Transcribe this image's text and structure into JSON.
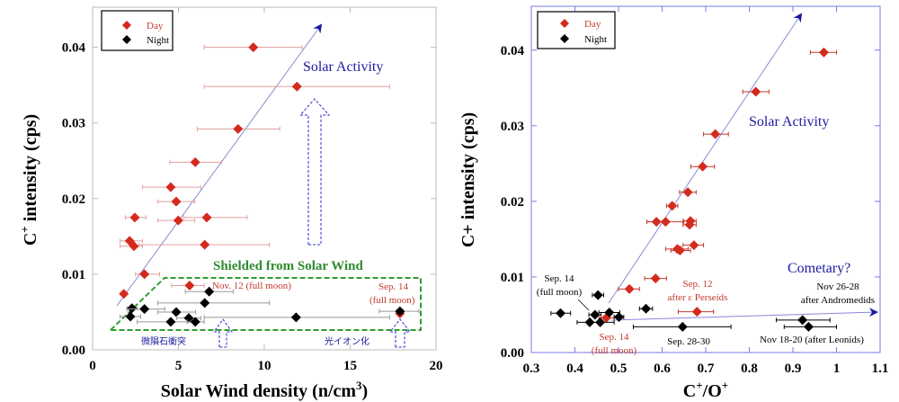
{
  "colors": {
    "day": "#d42a1e",
    "night": "#000000",
    "activity": "#1a1aa0",
    "shield": "#2e8b2e",
    "frame_left": "#bbbbbb",
    "frame_right": "#7a7ae8"
  },
  "chart_data": [
    {
      "type": "scatter",
      "title": "",
      "xlabel": "Solar Wind density (n/cm",
      "xlabel_sup": "3",
      "xlabel_end": ")",
      "ylabel": "C",
      "ylabel_sup": "+",
      "ylabel_end": " intensity (cps)",
      "xlim": [
        0,
        20
      ],
      "ylim": [
        0,
        0.0453
      ],
      "xticks": [
        "0",
        "5",
        "10",
        "15",
        "20"
      ],
      "xtick_values": [
        0,
        5,
        10,
        15,
        20
      ],
      "yticks": [
        "0.00",
        "0.01",
        "0.02",
        "0.03",
        "0.04"
      ],
      "ytick_values": [
        0,
        0.01,
        0.02,
        0.03,
        0.04
      ],
      "legend": {
        "position": "top-left",
        "entries": [
          "Day",
          "Night"
        ]
      },
      "series": [
        {
          "name": "Day",
          "points": [
            [
              9.36,
              0.04,
              6.5,
              12.2
            ],
            [
              11.9,
              0.0348,
              6.5,
              17.3
            ],
            [
              8.47,
              0.0292,
              6.1,
              10.9
            ],
            [
              5.98,
              0.0248,
              4.5,
              7.5
            ],
            [
              4.55,
              0.0215,
              2.9,
              6.3
            ],
            [
              4.87,
              0.0196,
              3.8,
              5.95
            ],
            [
              2.46,
              0.0175,
              1.9,
              3.1
            ],
            [
              4.99,
              0.0171,
              3.8,
              5.95
            ],
            [
              6.65,
              0.0175,
              5.3,
              9.0
            ],
            [
              2.16,
              0.0144,
              1.6,
              2.9
            ],
            [
              2.41,
              0.0137,
              1.6,
              2.9
            ],
            [
              6.53,
              0.0139,
              2.7,
              10.3
            ],
            [
              3.02,
              0.01,
              2.5,
              3.9
            ],
            [
              5.65,
              0.0085,
              4.6,
              6.5
            ],
            [
              1.82,
              0.0074,
              1.8,
              1.8
            ],
            [
              17.9,
              0.0048,
              17.9,
              17.9
            ]
          ]
        },
        {
          "name": "Night",
          "points": [
            [
              6.79,
              0.0077,
              5.4,
              8.2
            ],
            [
              6.53,
              0.0062,
              3.8,
              10.3
            ],
            [
              2.29,
              0.0055,
              2.0,
              2.6
            ],
            [
              3.02,
              0.0054,
              2.0,
              4.2
            ],
            [
              4.87,
              0.005,
              3.8,
              6.0
            ],
            [
              17.9,
              0.0051,
              16.7,
              19.0
            ],
            [
              2.2,
              0.0044,
              1.6,
              2.8
            ],
            [
              4.55,
              0.0037,
              2.6,
              6.0
            ],
            [
              5.6,
              0.0042,
              4.9,
              6.3
            ],
            [
              5.98,
              0.0037,
              5.5,
              6.5
            ],
            [
              11.85,
              0.0043,
              6.5,
              17.3
            ]
          ]
        }
      ],
      "annotations": {
        "solar_activity": "Solar Activity",
        "shielded": "Shielded from Solar Wind",
        "nov12": "Nov. 12 (full moon)",
        "sep14_a": "Sep. 14",
        "sep14_b": "(full moon)",
        "meteor": "微隕石衝突",
        "photoion": "光イオン化"
      }
    },
    {
      "type": "scatter",
      "title": "",
      "xlabel": "C",
      "xlabel_sup": "+",
      "xlabel_mid": "/O",
      "xlabel_sup2": "+",
      "ylabel": "C+ intensity (cps)",
      "xlim": [
        0.3,
        1.1
      ],
      "ylim": [
        0,
        0.0458
      ],
      "xticks": [
        "0.3",
        "0.4",
        "0.5",
        "0.6",
        "0.7",
        "0.8",
        "0.9",
        "1",
        "1.1"
      ],
      "xtick_values": [
        0.3,
        0.4,
        0.5,
        0.6,
        0.7,
        0.8,
        0.9,
        1.0,
        1.1
      ],
      "yticks": [
        "0.00",
        "0.01",
        "0.02",
        "0.03",
        "0.04"
      ],
      "ytick_values": [
        0,
        0.01,
        0.02,
        0.03,
        0.04
      ],
      "legend": {
        "position": "top-left",
        "entries": [
          "Day",
          "Night"
        ]
      },
      "series": [
        {
          "name": "Day",
          "points": [
            [
              0.971,
              0.0397,
              0.94,
              1.0
            ],
            [
              0.815,
              0.0345,
              0.785,
              0.845
            ],
            [
              0.722,
              0.0289,
              0.695,
              0.752
            ],
            [
              0.693,
              0.0246,
              0.666,
              0.72
            ],
            [
              0.659,
              0.0212,
              0.64,
              0.678
            ],
            [
              0.623,
              0.0194,
              0.61,
              0.636
            ],
            [
              0.587,
              0.0173,
              0.565,
              0.61
            ],
            [
              0.608,
              0.0173,
              0.565,
              0.65
            ],
            [
              0.665,
              0.0174,
              0.648,
              0.678
            ],
            [
              0.663,
              0.0169,
              0.648,
              0.678
            ],
            [
              0.673,
              0.0142,
              0.648,
              0.695
            ],
            [
              0.635,
              0.0137,
              0.608,
              0.66
            ],
            [
              0.641,
              0.0135,
              0.62,
              0.665
            ],
            [
              0.585,
              0.0098,
              0.56,
              0.61
            ],
            [
              0.525,
              0.0084,
              0.5,
              0.548
            ],
            [
              0.68,
              0.0054,
              0.637,
              0.718
            ],
            [
              0.472,
              0.0046,
              0.455,
              0.49
            ]
          ]
        },
        {
          "name": "Night",
          "points": [
            [
              0.453,
              0.0076,
              0.44,
              0.466
            ],
            [
              0.563,
              0.0058,
              0.548,
              0.578
            ],
            [
              0.367,
              0.0052,
              0.345,
              0.39
            ],
            [
              0.446,
              0.005,
              0.432,
              0.46
            ],
            [
              0.479,
              0.0053,
              0.455,
              0.503
            ],
            [
              0.501,
              0.0047,
              0.49,
              0.512
            ],
            [
              0.434,
              0.004,
              0.405,
              0.46
            ],
            [
              0.458,
              0.004,
              0.435,
              0.49
            ],
            [
              0.647,
              0.0034,
              0.534,
              0.758
            ],
            [
              0.922,
              0.0043,
              0.862,
              0.985
            ],
            [
              0.936,
              0.0034,
              0.88,
              1.0
            ]
          ]
        }
      ],
      "annotations": {
        "solar_activity": "Solar Activity",
        "cometary": "Cometary?",
        "sep14_night_a": "Sep. 14",
        "sep14_night_b": "(full moon)",
        "sep12_a": "Sep. 12",
        "sep12_b": "after ε Perseids",
        "nov26_a": "Nov 26-28",
        "nov26_b": "after Andromedids",
        "sep14_day_a": "Sep. 14",
        "sep14_day_b": "(full moon)",
        "sep28": "Sep. 28-30",
        "nov18": "Nov 18-20 (after Leonids)"
      }
    }
  ]
}
